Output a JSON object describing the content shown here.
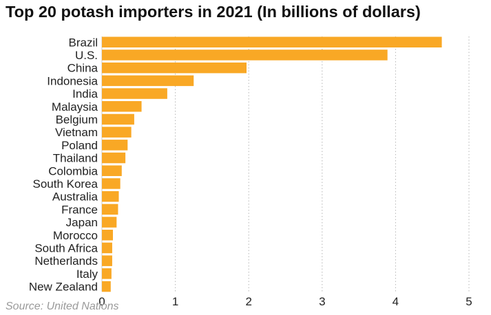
{
  "chart_data": {
    "type": "bar",
    "orientation": "horizontal",
    "title": "Top 20 potash importers in 2021 (In billions of dollars)",
    "categories": [
      "Brazil",
      "U.S.",
      "China",
      "Indonesia",
      "India",
      "Malaysia",
      "Belgium",
      "Vietnam",
      "Poland",
      "Thailand",
      "Colombia",
      "South Korea",
      "Australia",
      "France",
      "Japan",
      "Morocco",
      "South Africa",
      "Netherlands",
      "Italy",
      "New Zealand"
    ],
    "values": [
      4.63,
      3.89,
      1.97,
      1.25,
      0.89,
      0.54,
      0.44,
      0.4,
      0.35,
      0.32,
      0.27,
      0.25,
      0.23,
      0.22,
      0.2,
      0.15,
      0.14,
      0.14,
      0.13,
      0.12
    ],
    "x_ticks": [
      "0",
      "1",
      "2",
      "3",
      "4",
      "5"
    ],
    "xlim": [
      0,
      5
    ],
    "xlabel": "",
    "ylabel": "",
    "grid": "vertical dotted",
    "bar_color": "#f9a825",
    "source": "Source: United Nations"
  }
}
